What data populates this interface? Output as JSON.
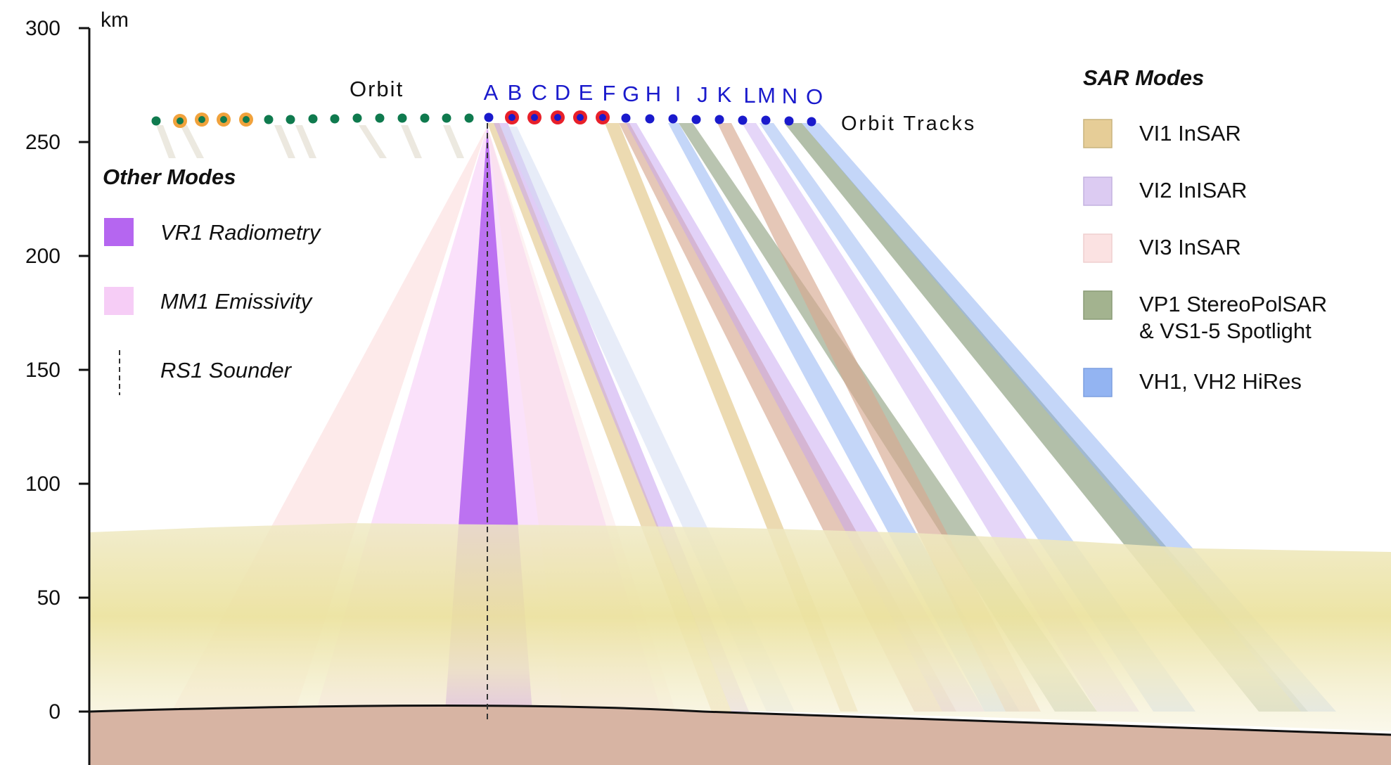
{
  "axis": {
    "unit": "km",
    "ticks": [
      0,
      50,
      100,
      150,
      200,
      250,
      300
    ]
  },
  "orbit": {
    "label": "Orbit",
    "tracks_label": "Orbit Tracks",
    "track_letters": [
      "A",
      "B",
      "C",
      "D",
      "E",
      "F",
      "G",
      "H",
      "I",
      "J",
      "K",
      "L",
      "M",
      "N",
      "O"
    ],
    "letter_color": "#1a1acc"
  },
  "other_modes": {
    "title": "Other Modes",
    "items": [
      {
        "label": "VR1 Radiometry",
        "color": "#b566f0"
      },
      {
        "label": "MM1 Emissivity",
        "color": "#f6cdf6"
      },
      {
        "label": "RS1 Sounder",
        "color": "#333333"
      }
    ]
  },
  "sar_modes": {
    "title": "SAR Modes",
    "items": [
      {
        "label": "VI1 InSAR",
        "color": "#e6cd97"
      },
      {
        "label": "VI2 InISAR",
        "color": "#dccbf2"
      },
      {
        "label": "VI3 InSAR",
        "color": "#fbe2e2"
      },
      {
        "label": "VP1 StereoPolSAR",
        "label2": "& VS1-5 Spotlight",
        "color": "#a3b38f"
      },
      {
        "label": "VH1, VH2 HiRes",
        "color": "#93b4f2"
      }
    ]
  },
  "colors": {
    "ground": "#d7b4a3",
    "orbit_green": "#0f7a4e",
    "orbit_orange": "#f0a23c",
    "orbit_red": "#e8202a",
    "orbit_blue": "#1a1acc",
    "atmosphere": "#ece6b0"
  }
}
